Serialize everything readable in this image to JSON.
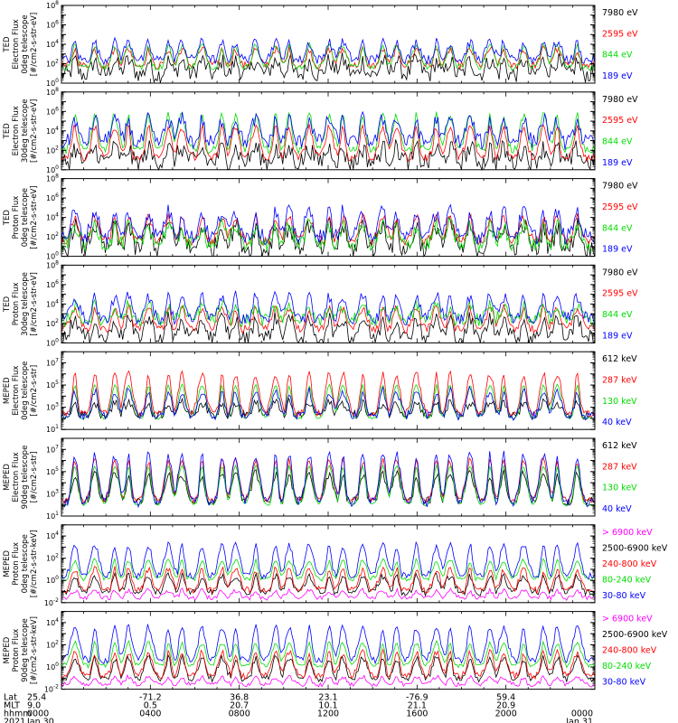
{
  "colors": {
    "black": "#000000",
    "red": "#ff0000",
    "green": "#00dd00",
    "blue": "#0000ff",
    "magenta": "#ff00ff"
  },
  "chart_data": {
    "type": "line",
    "x_ticks": [
      {
        "lat": "25.4",
        "mlt": "9.0",
        "hhmm": "0000",
        "date": "Jan 30"
      },
      {
        "lat": "-71.2",
        "mlt": "0.5",
        "hhmm": "0400",
        "date": ""
      },
      {
        "lat": "36.8",
        "mlt": "20.7",
        "hhmm": "0800",
        "date": ""
      },
      {
        "lat": "23.1",
        "mlt": "10.1",
        "hhmm": "1200",
        "date": ""
      },
      {
        "lat": "-76.9",
        "mlt": "21.1",
        "hhmm": "1600",
        "date": ""
      },
      {
        "lat": "59.4",
        "mlt": "20.9",
        "hhmm": "2000",
        "date": ""
      },
      {
        "lat": "",
        "mlt": "",
        "hhmm": "0000",
        "date": "Jan 31"
      }
    ],
    "x_axis_labels": [
      "Lat",
      "MLT",
      "hhmm",
      "2021"
    ],
    "panels": [
      {
        "ylabel": [
          "TED",
          "Electron Flux",
          "0deg telescope",
          "[#/cm2-s-str-eV]"
        ],
        "ymin_exp": 0,
        "ymax_exp": 8,
        "yscale": "log",
        "series": [
          {
            "name": "7980 eV",
            "color": "black",
            "base": 0.9,
            "peak": 2.3,
            "noise": 0.9
          },
          {
            "name": "2595 eV",
            "color": "red",
            "base": 1.8,
            "peak": 3.5,
            "noise": 0.4
          },
          {
            "name": "844 eV",
            "color": "green",
            "base": 1.6,
            "peak": 3.9,
            "noise": 0.3
          },
          {
            "name": "189 eV",
            "color": "blue",
            "base": 2.4,
            "peak": 4.2,
            "noise": 0.5
          }
        ]
      },
      {
        "ylabel": [
          "TED",
          "Electron Flux",
          "30deg telescope",
          "[#/cm2-s-str-eV]"
        ],
        "ymin_exp": 0,
        "ymax_exp": 8,
        "yscale": "log",
        "series": [
          {
            "name": "7980 eV",
            "color": "black",
            "base": 0.8,
            "peak": 2.2,
            "noise": 1.0
          },
          {
            "name": "2595 eV",
            "color": "red",
            "base": 1.2,
            "peak": 4.4,
            "noise": 0.4
          },
          {
            "name": "844 eV",
            "color": "green",
            "base": 2.0,
            "peak": 5.6,
            "noise": 0.4
          },
          {
            "name": "189 eV",
            "color": "blue",
            "base": 2.8,
            "peak": 5.2,
            "noise": 0.8
          }
        ]
      },
      {
        "ylabel": [
          "TED",
          "Proton Flux",
          "0deg telescope",
          "[#/cm2-s-str-eV]"
        ],
        "ymin_exp": 0,
        "ymax_exp": 8,
        "yscale": "log",
        "series": [
          {
            "name": "7980 eV",
            "color": "black",
            "base": 0.7,
            "peak": 3.2,
            "noise": 1.0
          },
          {
            "name": "2595 eV",
            "color": "red",
            "base": 1.6,
            "peak": 4.0,
            "noise": 0.5
          },
          {
            "name": "844 eV",
            "color": "green",
            "base": 1.2,
            "peak": 3.2,
            "noise": 0.8
          },
          {
            "name": "189 eV",
            "color": "blue",
            "base": 2.0,
            "peak": 4.6,
            "noise": 0.8
          }
        ]
      },
      {
        "ylabel": [
          "TED",
          "Proton Flux",
          "30deg telescope",
          "[#/cm2-s-str-eV]"
        ],
        "ymin_exp": 0,
        "ymax_exp": 8,
        "yscale": "log",
        "series": [
          {
            "name": "7980 eV",
            "color": "black",
            "base": 0.5,
            "peak": 2.5,
            "noise": 0.8
          },
          {
            "name": "2595 eV",
            "color": "red",
            "base": 1.4,
            "peak": 3.6,
            "noise": 0.4
          },
          {
            "name": "844 eV",
            "color": "green",
            "base": 2.3,
            "peak": 3.8,
            "noise": 0.7
          },
          {
            "name": "189 eV",
            "color": "blue",
            "base": 2.4,
            "peak": 4.8,
            "noise": 0.6
          }
        ]
      },
      {
        "ylabel": [
          "MEPED",
          "Electron Flux",
          "0deg telescope",
          "[#/cm2-s-str]"
        ],
        "ymin_exp": 1,
        "ymax_exp": 8,
        "yscale": "log",
        "series": [
          {
            "name": "612 keV",
            "color": "black",
            "base": 2.3,
            "peak": 3.4,
            "noise": 0.4
          },
          {
            "name": "287 keV",
            "color": "red",
            "base": 2.4,
            "peak": 6.0,
            "noise": 0.3
          },
          {
            "name": "130 keV",
            "color": "green",
            "base": 2.0,
            "peak": 5.0,
            "noise": 0.1
          },
          {
            "name": "40 keV",
            "color": "blue",
            "base": 2.2,
            "peak": 4.5,
            "noise": 0.4
          }
        ]
      },
      {
        "ylabel": [
          "MEPED",
          "Electron Flux",
          "90deg telescope",
          "[#/cm2-s-str]"
        ],
        "ymin_exp": 1,
        "ymax_exp": 8,
        "yscale": "log",
        "series": [
          {
            "name": "612 keV",
            "color": "black",
            "base": 2.3,
            "peak": 4.8,
            "noise": 0.4
          },
          {
            "name": "287 keV",
            "color": "red",
            "base": 2.4,
            "peak": 6.0,
            "noise": 0.3
          },
          {
            "name": "130 keV",
            "color": "green",
            "base": 2.0,
            "peak": 5.5,
            "noise": 0.1
          },
          {
            "name": "40 keV",
            "color": "blue",
            "base": 2.2,
            "peak": 6.5,
            "noise": 0.4
          }
        ]
      },
      {
        "ylabel": [
          "MEPED",
          "Proton Flux",
          "0deg telescope",
          "[#/cm2-s-str-keV]"
        ],
        "ymin_exp": -2,
        "ymax_exp": 5,
        "yscale": "log",
        "series": [
          {
            "name": "> 6900 keV",
            "color": "magenta",
            "base": -1.6,
            "peak": -0.9,
            "noise": 0.2
          },
          {
            "name": "2500-6900 keV",
            "color": "black",
            "base": -1.1,
            "peak": 0.4,
            "noise": 0.3
          },
          {
            "name": "240-800 keV",
            "color": "red",
            "base": -0.9,
            "peak": 1.0,
            "noise": 0.3
          },
          {
            "name": "80-240 keV",
            "color": "green",
            "base": 0.1,
            "peak": 1.8,
            "noise": 0.2
          },
          {
            "name": "30-80 keV",
            "color": "blue",
            "base": 0.4,
            "peak": 3.2,
            "noise": 0.3
          }
        ]
      },
      {
        "ylabel": [
          "MEPED",
          "Proton Flux",
          "90deg telescope",
          "[#/cm2-s-str-keV]"
        ],
        "ymin_exp": -2,
        "ymax_exp": 5,
        "yscale": "log",
        "series": [
          {
            "name": "> 6900 keV",
            "color": "magenta",
            "base": -1.6,
            "peak": -0.9,
            "noise": 0.2
          },
          {
            "name": "2500-6900 keV",
            "color": "black",
            "base": -1.1,
            "peak": 0.8,
            "noise": 0.3
          },
          {
            "name": "240-800 keV",
            "color": "red",
            "base": -0.8,
            "peak": 1.3,
            "noise": 0.3
          },
          {
            "name": "80-240 keV",
            "color": "green",
            "base": 0.1,
            "peak": 2.2,
            "noise": 0.2
          },
          {
            "name": "30-80 keV",
            "color": "blue",
            "base": 0.6,
            "peak": 3.6,
            "noise": 0.3
          }
        ]
      }
    ]
  }
}
